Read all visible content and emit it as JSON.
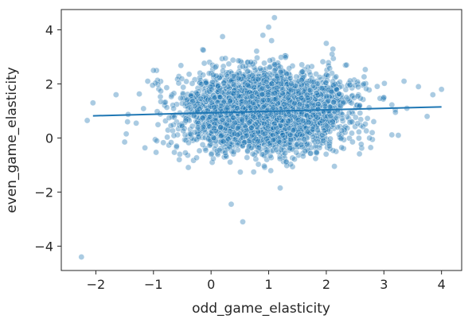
{
  "chart_data": {
    "type": "scatter",
    "title": "",
    "xlabel": "odd_game_elasticity",
    "ylabel": "even_game_elasticity",
    "xlim": [
      -2.6,
      4.35
    ],
    "ylim": [
      -4.9,
      4.75
    ],
    "xticks": [
      -2,
      -1,
      0,
      1,
      2,
      3,
      4
    ],
    "yticks": [
      -4,
      -2,
      0,
      2,
      4
    ],
    "xtick_labels": [
      "−2",
      "−1",
      "0",
      "1",
      "2",
      "3",
      "4"
    ],
    "ytick_labels": [
      "−4",
      "−2",
      "0",
      "2",
      "4"
    ],
    "grid": false,
    "legend": "none",
    "colors": {
      "points": "#1f77b4",
      "fit_line": "#1f77b4",
      "axes": "#262626"
    },
    "cloud": {
      "count": 3800,
      "x_mean": 0.95,
      "x_sd": 0.7,
      "y_mean": 0.98,
      "y_sd": 0.72
    },
    "outliers": [
      {
        "x": -2.25,
        "y": -4.4
      },
      {
        "x": -2.15,
        "y": 0.65
      },
      {
        "x": -2.05,
        "y": 1.3
      },
      {
        "x": -1.65,
        "y": 1.6
      },
      {
        "x": -1.5,
        "y": -0.15
      },
      {
        "x": -1.45,
        "y": 0.6
      },
      {
        "x": -1.3,
        "y": 0.55
      },
      {
        "x": -1.0,
        "y": 2.5
      },
      {
        "x": -1.1,
        "y": 2.1
      },
      {
        "x": 0.2,
        "y": 3.75
      },
      {
        "x": 0.35,
        "y": -2.45
      },
      {
        "x": 0.55,
        "y": -3.1
      },
      {
        "x": 0.9,
        "y": 3.8
      },
      {
        "x": 1.0,
        "y": 4.1
      },
      {
        "x": 1.05,
        "y": 3.6
      },
      {
        "x": 1.1,
        "y": 4.45
      },
      {
        "x": 1.2,
        "y": -1.85
      },
      {
        "x": 2.0,
        "y": 3.5
      },
      {
        "x": 2.1,
        "y": 3.1
      },
      {
        "x": 2.35,
        "y": 2.7
      },
      {
        "x": 2.65,
        "y": 2.0
      },
      {
        "x": 2.75,
        "y": 0.0
      },
      {
        "x": 3.0,
        "y": 1.5
      },
      {
        "x": 3.2,
        "y": 0.95
      },
      {
        "x": 3.25,
        "y": 0.1
      },
      {
        "x": 3.35,
        "y": 2.1
      },
      {
        "x": 3.4,
        "y": 1.1
      },
      {
        "x": 3.6,
        "y": 1.9
      },
      {
        "x": 3.75,
        "y": 0.8
      },
      {
        "x": 3.85,
        "y": 1.6
      },
      {
        "x": 4.0,
        "y": 1.8
      }
    ],
    "regression_line": {
      "x": [
        -2.05,
        4.0
      ],
      "y": [
        0.82,
        1.15
      ]
    }
  }
}
